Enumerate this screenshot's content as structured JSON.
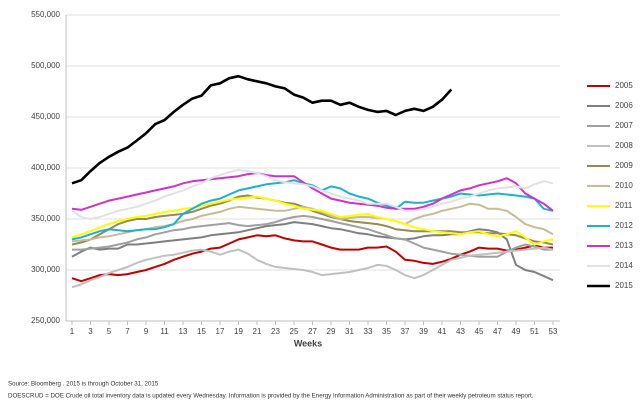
{
  "chart_data": {
    "type": "line",
    "x_label": "Weeks",
    "grid": true,
    "legend": "right",
    "x": [
      1,
      2,
      3,
      4,
      5,
      6,
      7,
      8,
      9,
      10,
      11,
      12,
      13,
      14,
      15,
      16,
      17,
      18,
      19,
      20,
      21,
      22,
      23,
      24,
      25,
      26,
      27,
      28,
      29,
      30,
      31,
      32,
      33,
      34,
      35,
      36,
      37,
      38,
      39,
      40,
      41,
      42,
      43,
      44,
      45,
      46,
      47,
      48,
      49,
      50,
      51,
      52,
      53
    ],
    "xlim": [
      1,
      53
    ],
    "xticks": [
      1,
      3,
      5,
      7,
      9,
      11,
      13,
      15,
      17,
      19,
      21,
      23,
      25,
      27,
      29,
      31,
      33,
      35,
      37,
      39,
      41,
      43,
      45,
      47,
      49,
      51,
      53
    ],
    "ylim": [
      250000,
      550000
    ],
    "yticks": [
      {
        "value": 250000,
        "label": "250,000"
      },
      {
        "value": 300000,
        "label": "300,000"
      },
      {
        "value": 350000,
        "label": "350,000"
      },
      {
        "value": 400000,
        "label": "400,000"
      },
      {
        "value": 450000,
        "label": "450,000"
      },
      {
        "value": 500000,
        "label": "500,000"
      },
      {
        "value": 550000,
        "label": "550,000"
      }
    ],
    "series": [
      {
        "name": "2005",
        "color": "#c00000",
        "values": [
          292000,
          289000,
          292000,
          295000,
          296000,
          295000,
          296000,
          298000,
          300000,
          303000,
          306000,
          310000,
          313000,
          316000,
          318000,
          321000,
          322000,
          326000,
          330000,
          332000,
          334000,
          333000,
          334000,
          331000,
          329000,
          328000,
          328000,
          325000,
          322000,
          320000,
          320000,
          320000,
          322000,
          322000,
          323000,
          318000,
          310000,
          309000,
          307000,
          306000,
          308000,
          311000,
          315000,
          318000,
          322000,
          321000,
          321000,
          319000,
          320000,
          322000,
          324000,
          322000,
          322000
        ]
      },
      {
        "name": "2006",
        "color": "#7f7f7f",
        "values": [
          313000,
          318000,
          322000,
          320000,
          321000,
          321000,
          325000,
          325000,
          326000,
          327000,
          328000,
          329000,
          330000,
          331000,
          332000,
          334000,
          335000,
          336000,
          337000,
          339000,
          341000,
          343000,
          344000,
          345000,
          347000,
          346000,
          345000,
          343000,
          341000,
          340000,
          338000,
          336000,
          335000,
          333000,
          332000,
          331000,
          330000,
          331000,
          333000,
          334000,
          334000,
          335000,
          335000,
          338000,
          340000,
          339000,
          337000,
          330000,
          305000,
          300000,
          298000,
          294000,
          290000
        ]
      },
      {
        "name": "2007",
        "color": "#a0a0a0",
        "values": [
          320000,
          320000,
          321000,
          322000,
          323000,
          325000,
          327000,
          330000,
          332000,
          335000,
          337000,
          339000,
          340000,
          342000,
          343000,
          344000,
          345000,
          346000,
          344000,
          343000,
          344000,
          345000,
          347000,
          350000,
          352000,
          353000,
          352000,
          350000,
          348000,
          346000,
          344000,
          342000,
          340000,
          337000,
          334000,
          331000,
          330000,
          326000,
          322000,
          320000,
          318000,
          316000,
          315000,
          314000,
          313000,
          313000,
          313000,
          318000,
          322000,
          325000,
          323000,
          320000,
          320000
        ]
      },
      {
        "name": "2008",
        "color": "#c0c0c0",
        "values": [
          283000,
          286000,
          290000,
          293000,
          297000,
          300000,
          303000,
          307000,
          310000,
          312000,
          314000,
          315000,
          317000,
          319000,
          320000,
          318000,
          315000,
          318000,
          320000,
          316000,
          310000,
          306000,
          303000,
          302000,
          301000,
          300000,
          298000,
          295000,
          296000,
          297000,
          298000,
          300000,
          302000,
          305000,
          304000,
          300000,
          295000,
          292000,
          295000,
          300000,
          305000,
          310000,
          312000,
          314000,
          315000,
          316000,
          317000,
          318000,
          319000,
          320000,
          321000,
          322000,
          320000
        ]
      },
      {
        "name": "2009",
        "color": "#948a54",
        "values": [
          325000,
          327000,
          330000,
          335000,
          340000,
          345000,
          348000,
          350000,
          350000,
          352000,
          353000,
          354000,
          355000,
          357000,
          360000,
          363000,
          365000,
          368000,
          372000,
          373000,
          371000,
          370000,
          368000,
          366000,
          365000,
          362000,
          358000,
          355000,
          352000,
          350000,
          348000,
          347000,
          346000,
          345000,
          343000,
          340000,
          339000,
          338000,
          338000,
          338000,
          338000,
          338000,
          337000,
          337000,
          337000,
          336000,
          336000,
          335000,
          334000,
          331000,
          328000,
          327000,
          325000
        ]
      },
      {
        "name": "2010",
        "color": "#c4bd97",
        "values": [
          328000,
          329000,
          330000,
          332000,
          333000,
          335000,
          337000,
          339000,
          340000,
          342000,
          343000,
          345000,
          348000,
          350000,
          353000,
          355000,
          357000,
          360000,
          362000,
          361000,
          360000,
          359000,
          358000,
          358000,
          360000,
          362000,
          360000,
          357000,
          353000,
          350000,
          351000,
          352000,
          352000,
          351000,
          350000,
          348000,
          345000,
          350000,
          353000,
          355000,
          358000,
          360000,
          362000,
          365000,
          364000,
          360000,
          360000,
          358000,
          352000,
          345000,
          342000,
          340000,
          335000
        ]
      },
      {
        "name": "2011",
        "color": "#ffff00",
        "values": [
          332000,
          335000,
          338000,
          342000,
          345000,
          348000,
          350000,
          352000,
          353000,
          355000,
          357000,
          358000,
          360000,
          361000,
          363000,
          365000,
          367000,
          369000,
          370000,
          371000,
          372000,
          370000,
          368000,
          365000,
          363000,
          360000,
          359000,
          358000,
          355000,
          352000,
          353000,
          354000,
          355000,
          352000,
          350000,
          348000,
          345000,
          342000,
          340000,
          338000,
          337000,
          336000,
          335000,
          337000,
          338000,
          335000,
          333000,
          335000,
          338000,
          332000,
          325000,
          328000,
          330000
        ]
      },
      {
        "name": "2012",
        "color": "#1fb0d0",
        "values": [
          330000,
          332000,
          335000,
          338000,
          340000,
          339000,
          338000,
          339000,
          340000,
          340000,
          342000,
          345000,
          355000,
          360000,
          365000,
          368000,
          370000,
          374000,
          378000,
          380000,
          382000,
          384000,
          385000,
          386000,
          388000,
          385000,
          383000,
          378000,
          382000,
          380000,
          375000,
          372000,
          370000,
          366000,
          363000,
          360000,
          367000,
          366000,
          366000,
          368000,
          370000,
          372000,
          375000,
          374000,
          373000,
          374000,
          375000,
          374000,
          373000,
          372000,
          370000,
          360000,
          358000
        ]
      },
      {
        "name": "2013",
        "color": "#cc33cc",
        "values": [
          360000,
          359000,
          362000,
          365000,
          368000,
          370000,
          372000,
          374000,
          376000,
          378000,
          380000,
          382000,
          385000,
          387000,
          388000,
          389000,
          390000,
          391000,
          392000,
          394000,
          395000,
          393000,
          392000,
          392000,
          392000,
          386000,
          380000,
          375000,
          370000,
          368000,
          366000,
          365000,
          364000,
          363000,
          361000,
          360000,
          360000,
          360000,
          362000,
          365000,
          370000,
          374000,
          378000,
          380000,
          383000,
          385000,
          387000,
          390000,
          385000,
          375000,
          370000,
          365000,
          358000
        ]
      },
      {
        "name": "2014",
        "color": "#e2e2e2",
        "values": [
          358000,
          352000,
          350000,
          352000,
          355000,
          358000,
          360000,
          362000,
          365000,
          368000,
          372000,
          375000,
          378000,
          382000,
          385000,
          390000,
          393000,
          396000,
          398000,
          397000,
          395000,
          392000,
          388000,
          386000,
          385000,
          384000,
          382000,
          378000,
          375000,
          372000,
          370000,
          368000,
          365000,
          365000,
          365000,
          362000,
          358000,
          358000,
          360000,
          362000,
          365000,
          367000,
          370000,
          372000,
          375000,
          378000,
          380000,
          381000,
          382000,
          380000,
          384000,
          387000,
          385000
        ]
      },
      {
        "name": "2015",
        "color": "#000000",
        "values": [
          385000,
          388000,
          397000,
          405000,
          411000,
          416000,
          420000,
          427000,
          434000,
          443000,
          447000,
          455000,
          462000,
          468000,
          471000,
          481000,
          483000,
          488000,
          490000,
          487000,
          485000,
          483000,
          480000,
          478000,
          472000,
          469000,
          464000,
          466000,
          466000,
          462000,
          464000,
          460000,
          457000,
          455000,
          456000,
          452000,
          456000,
          458000,
          456000,
          460000,
          467000,
          477000,
          null,
          null,
          null,
          null,
          null,
          null,
          null,
          null,
          null,
          null,
          null
        ]
      }
    ],
    "source": "Source: Bloomberg . 2015 is through October 31, 2015",
    "note": "DOESCRUD = DOE Crude oil total inventory data is updated every Wednesday. Information is provided by the Energy Information Administration as part of their weekly petroleum status report."
  }
}
